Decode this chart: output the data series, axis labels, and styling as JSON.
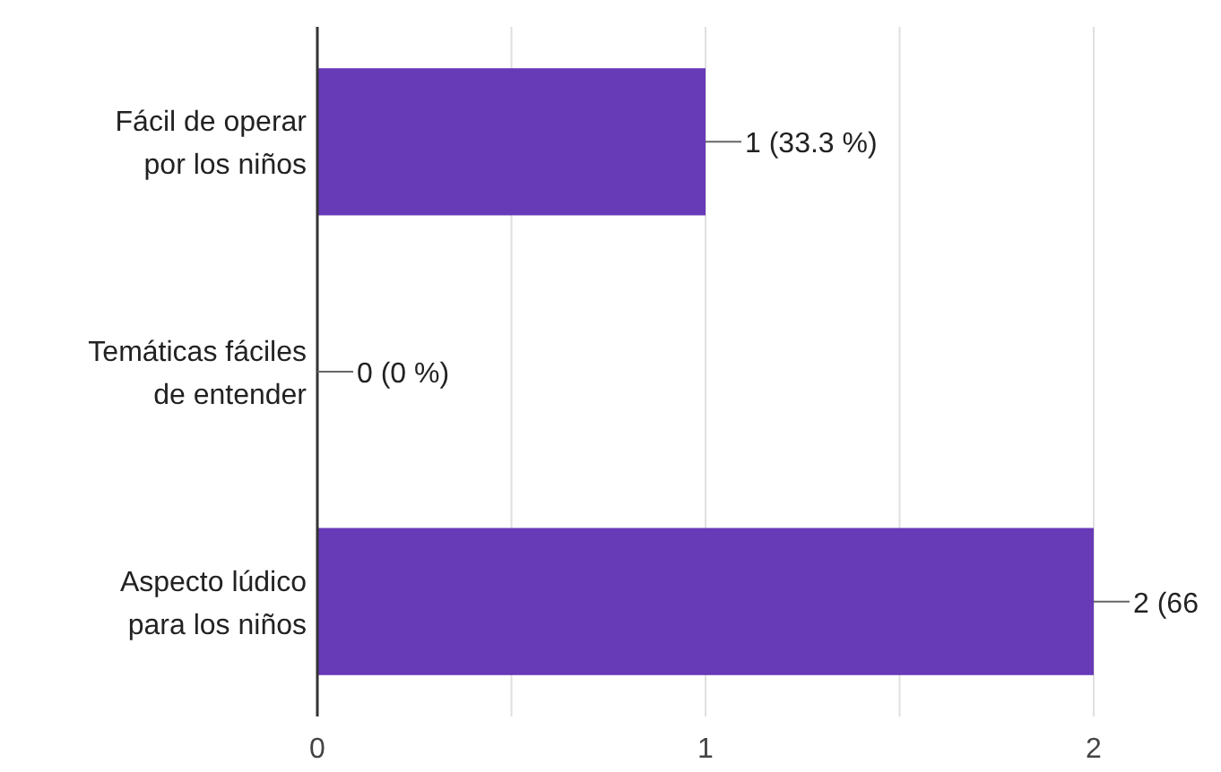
{
  "chart_data": {
    "type": "bar",
    "orientation": "horizontal",
    "categories": [
      "Fácil de operar por los niños",
      "Temáticas fáciles de entender",
      "Aspecto lúdico para los niños"
    ],
    "values": [
      1,
      0,
      2
    ],
    "color": "#673ab7",
    "value_labels": [
      "1 (33.3 %)",
      "0 (0 %)",
      "2 (66"
    ],
    "xlim": [
      0,
      2
    ],
    "xticks": [
      0,
      {
        "value": 0.5,
        "label": null
      },
      1,
      {
        "value": 1.5,
        "label": null
      },
      2
    ],
    "grid": "x"
  }
}
